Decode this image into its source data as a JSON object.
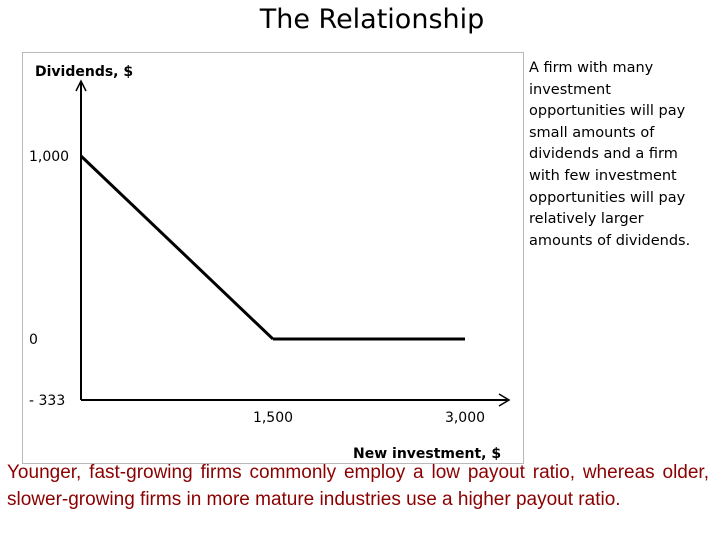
{
  "slide": {
    "title": "The Relationship",
    "note": "A firm with many investment opportunities will pay small amounts of dividends and a firm with few investment opportunities will pay relatively larger amounts of dividends.",
    "caption": "Younger, fast-growing firms commonly employ a low payout ratio, whereas older, slower-growing firms in more mature industries use a higher payout ratio."
  },
  "chart_data": {
    "type": "line",
    "xlabel": "New investment, $",
    "ylabel": "Dividends, $",
    "x_ticks": [
      {
        "value": 1500,
        "label": "1,500"
      },
      {
        "value": 3000,
        "label": "3,000"
      }
    ],
    "y_ticks": [
      {
        "value": 1000,
        "label": "1,000"
      },
      {
        "value": 0,
        "label": "0"
      },
      {
        "value": -333,
        "label": "- 333"
      }
    ],
    "xlim": [
      0,
      3000
    ],
    "ylim": [
      -333,
      1000
    ],
    "series": [
      {
        "x": [
          0,
          1500,
          3000
        ],
        "y": [
          1000,
          0,
          0
        ]
      }
    ],
    "grid": false,
    "colors": {
      "line": "#000000",
      "caption": "#8b0000"
    }
  }
}
